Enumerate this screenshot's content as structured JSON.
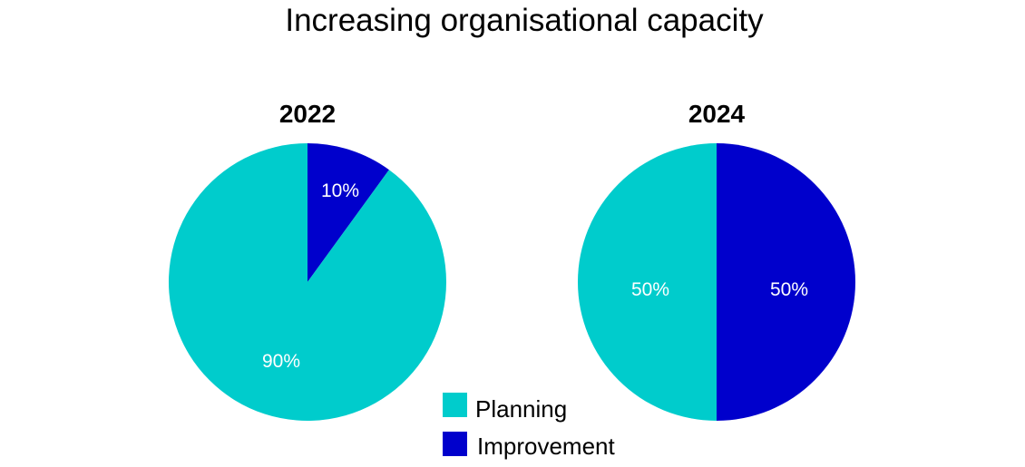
{
  "chart_data": {
    "type": "pie",
    "title": "Increasing organisational capacity",
    "series_names": [
      "Planning",
      "Improvement"
    ],
    "colors": {
      "Planning": "#00CCCC",
      "Improvement": "#0000CC"
    },
    "pies": [
      {
        "label": "2022",
        "slices": [
          {
            "name": "Improvement",
            "value": 10,
            "label": "10%"
          },
          {
            "name": "Planning",
            "value": 90,
            "label": "90%"
          }
        ]
      },
      {
        "label": "2024",
        "slices": [
          {
            "name": "Improvement",
            "value": 50,
            "label": "50%"
          },
          {
            "name": "Planning",
            "value": 50,
            "label": "50%"
          }
        ]
      }
    ],
    "legend": {
      "placement": "bottom-center",
      "entries": [
        "Planning",
        "Improvement"
      ]
    }
  }
}
